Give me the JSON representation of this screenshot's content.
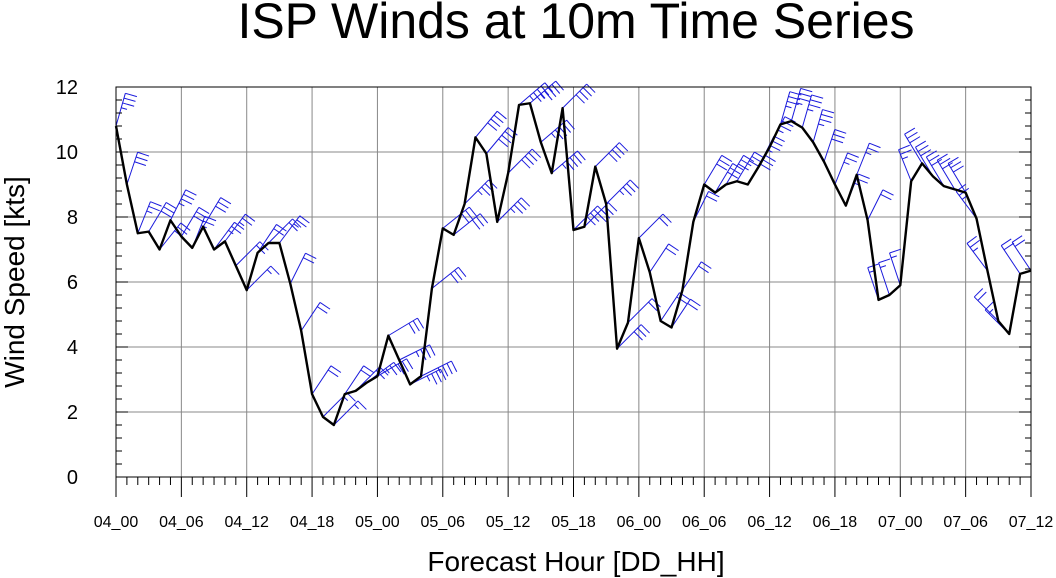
{
  "chart_data": {
    "type": "line",
    "title": "ISP Winds at 10m Time Series",
    "xlabel": "Forecast Hour [DD_HH]",
    "ylabel": "Wind Speed [kts]",
    "xlim": [
      0,
      84
    ],
    "ylim": [
      0,
      12
    ],
    "grid": true,
    "x_tick_positions": [
      0,
      6,
      12,
      18,
      24,
      30,
      36,
      42,
      48,
      54,
      60,
      66,
      72,
      78,
      84
    ],
    "x_tick_labels": [
      "04_00",
      "04_06",
      "04_12",
      "04_18",
      "05_00",
      "05_06",
      "05_12",
      "05_18",
      "06_00",
      "06_06",
      "06_12",
      "06_18",
      "07_00",
      "07_06",
      "07_12"
    ],
    "y_ticks": [
      0,
      2,
      4,
      6,
      8,
      10,
      12
    ],
    "colors": {
      "line": "#000000",
      "barbs": "#1a1adc",
      "grid": "#888888"
    },
    "series": [
      {
        "x": [
          0,
          1,
          2,
          3,
          4,
          5,
          6,
          7,
          8,
          9,
          10,
          11,
          12,
          13,
          14,
          15,
          16,
          17,
          18,
          19,
          20,
          21,
          22,
          23,
          24,
          25,
          26,
          27,
          28,
          29,
          30,
          31,
          32,
          33,
          34,
          35,
          36,
          37,
          38,
          39,
          40,
          41,
          42,
          43,
          44,
          45,
          46,
          47,
          48,
          49,
          50,
          51,
          52,
          53,
          54,
          55,
          56,
          57,
          58,
          59,
          60,
          61,
          62,
          63,
          64,
          65,
          66,
          67,
          68,
          69,
          70,
          71,
          72,
          73,
          74,
          75,
          76,
          77,
          78,
          79,
          80,
          81,
          82,
          83,
          84
        ],
        "values": [
          10.8,
          9.0,
          7.5,
          7.55,
          7.0,
          7.9,
          7.4,
          7.05,
          7.7,
          7.0,
          7.25,
          6.5,
          5.75,
          6.9,
          7.2,
          7.2,
          5.95,
          4.5,
          2.55,
          1.85,
          1.6,
          2.55,
          2.65,
          2.9,
          3.1,
          4.35,
          3.6,
          2.85,
          3.1,
          5.8,
          7.65,
          7.45,
          8.4,
          10.45,
          9.95,
          7.85,
          9.35,
          11.45,
          11.5,
          10.3,
          9.35,
          11.35,
          7.6,
          7.7,
          9.55,
          8.4,
          3.95,
          4.75,
          7.35,
          6.3,
          4.8,
          4.6,
          5.75,
          7.85,
          9.0,
          8.75,
          9.0,
          9.1,
          9.0,
          9.55,
          10.15,
          10.85,
          10.95,
          10.75,
          10.3,
          9.7,
          9.0,
          8.35,
          9.3,
          7.9,
          5.45,
          5.6,
          5.9,
          9.1,
          9.65,
          9.25,
          8.95,
          8.85,
          8.75,
          7.95,
          6.35,
          4.8,
          4.4,
          6.25,
          6.35
        ]
      }
    ],
    "wind_barbs": [
      [
        -10,
        -35
      ],
      [
        -10,
        -30
      ],
      [
        -10,
        -25
      ],
      [
        -15,
        -25
      ],
      [
        -20,
        -25
      ],
      [
        -15,
        -30
      ],
      [
        -15,
        -25
      ],
      [
        -10,
        -25
      ],
      [
        -15,
        -25
      ],
      [
        -15,
        -20
      ],
      [
        -15,
        -20
      ],
      [
        -15,
        -15
      ],
      [
        -10,
        -10
      ],
      [
        -10,
        -15
      ],
      [
        -15,
        -15
      ],
      [
        -15,
        -20
      ],
      [
        -10,
        -20
      ],
      [
        -10,
        -15
      ],
      [
        -10,
        -15
      ],
      [
        -10,
        -10
      ],
      [
        -10,
        -10
      ],
      [
        -10,
        -15
      ],
      [
        -15,
        -15
      ],
      [
        -20,
        -15
      ],
      [
        -25,
        -15
      ],
      [
        -25,
        -15
      ],
      [
        -30,
        -15
      ],
      [
        -30,
        -15
      ],
      [
        -30,
        -15
      ],
      [
        -25,
        -20
      ],
      [
        -25,
        -20
      ],
      [
        -25,
        -20
      ],
      [
        -25,
        -25
      ],
      [
        -25,
        -30
      ],
      [
        -25,
        -30
      ],
      [
        -25,
        -25
      ],
      [
        -30,
        -30
      ],
      [
        -35,
        -30
      ],
      [
        -35,
        -30
      ],
      [
        -35,
        -30
      ],
      [
        -35,
        -30
      ],
      [
        -30,
        -30
      ],
      [
        -30,
        -30
      ],
      [
        -30,
        -30
      ],
      [
        -30,
        -30
      ],
      [
        -25,
        -25
      ],
      [
        -20,
        -20
      ],
      [
        -15,
        -15
      ],
      [
        -15,
        -15
      ],
      [
        -10,
        -15
      ],
      [
        -10,
        -15
      ],
      [
        -10,
        -15
      ],
      [
        -10,
        -15
      ],
      [
        -10,
        -20
      ],
      [
        -15,
        -25
      ],
      [
        -15,
        -25
      ],
      [
        -15,
        -25
      ],
      [
        -15,
        -25
      ],
      [
        -15,
        -25
      ],
      [
        -15,
        -30
      ],
      [
        -15,
        -30
      ],
      [
        -10,
        -35
      ],
      [
        -10,
        -35
      ],
      [
        -10,
        -35
      ],
      [
        -10,
        -35
      ],
      [
        -10,
        -30
      ],
      [
        -10,
        -25
      ],
      [
        -10,
        -25
      ],
      [
        -10,
        -25
      ],
      [
        -10,
        -20
      ],
      [
        5,
        -15
      ],
      [
        5,
        -15
      ],
      [
        5,
        -15
      ],
      [
        10,
        -25
      ],
      [
        15,
        -25
      ],
      [
        15,
        -25
      ],
      [
        15,
        -25
      ],
      [
        15,
        -25
      ],
      [
        15,
        -25
      ],
      [
        15,
        -20
      ],
      [
        15,
        -20
      ],
      [
        15,
        -15
      ],
      [
        10,
        -10
      ],
      [
        10,
        -15
      ],
      [
        10,
        -15
      ]
    ]
  }
}
